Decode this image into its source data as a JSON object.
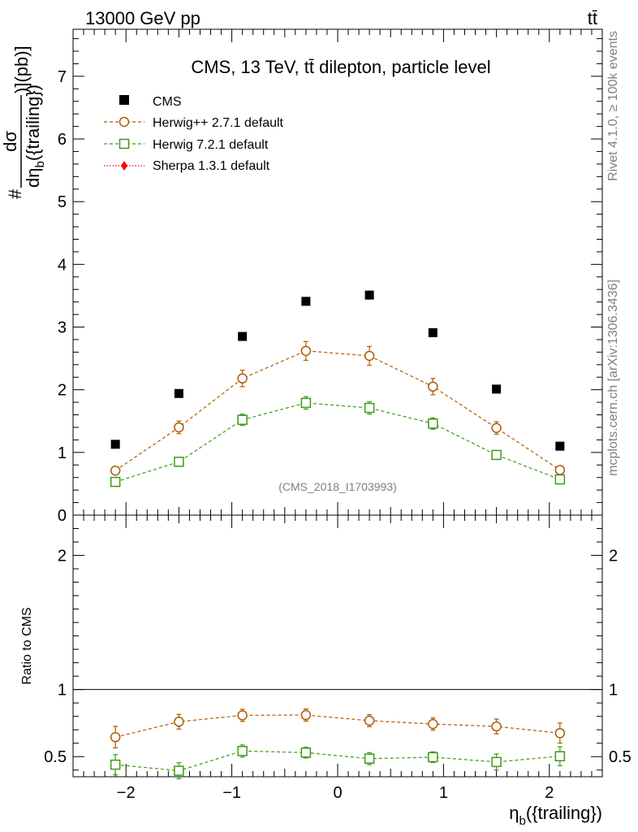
{
  "header": {
    "left": "13000 GeV pp",
    "right": "tt̄"
  },
  "side_labels": {
    "rivet": "Rivet 4.1.0, ≥ 100k events",
    "mcplots": "mcplots.cern.ch [arXiv:1306.3436]"
  },
  "chart_data": [
    {
      "type": "scatter",
      "panel": "main",
      "title": "CMS, 13 TeV, tt̄ dilepton, particle level",
      "watermark": "(CMS_2018_I1703993)",
      "ylabel": {
        "hash": "#",
        "frac_num": "dσ",
        "frac_den_pre": "dη",
        "frac_den_sub": "b",
        "frac_den_post": "({trailing})",
        "unit": ")](pb)]"
      },
      "xlim": [
        -2.5,
        2.5
      ],
      "ylim": [
        0,
        7.75
      ],
      "yticks": [
        0,
        1,
        2,
        3,
        4,
        5,
        6,
        7
      ],
      "x": [
        -2.1,
        -1.5,
        -0.9,
        -0.3,
        0.3,
        0.9,
        1.5,
        2.1
      ],
      "legend_position": "top-left",
      "series": [
        {
          "name": "CMS",
          "marker": "filled-square",
          "color": "#000000",
          "line": "none",
          "values": [
            1.13,
            1.94,
            2.85,
            3.41,
            3.51,
            2.91,
            2.01,
            1.1
          ]
        },
        {
          "name": "Herwig++ 2.7.1 default",
          "marker": "open-circle",
          "color": "#b05a00",
          "line": "dashed",
          "values": [
            0.71,
            1.4,
            2.18,
            2.62,
            2.54,
            2.05,
            1.39,
            0.72
          ],
          "errors": [
            0.05,
            0.1,
            0.13,
            0.15,
            0.15,
            0.13,
            0.1,
            0.05
          ]
        },
        {
          "name": "Herwig 7.2.1 default",
          "marker": "open-square",
          "color": "#3c9b13",
          "line": "dashed",
          "values": [
            0.53,
            0.85,
            1.52,
            1.79,
            1.71,
            1.46,
            0.96,
            0.57
          ],
          "errors": [
            0.04,
            0.06,
            0.09,
            0.1,
            0.1,
            0.09,
            0.07,
            0.04
          ]
        },
        {
          "name": "Sherpa 1.3.1 default",
          "marker": "filled-diamond",
          "color": "#ff0000",
          "line": "dotted",
          "values": []
        }
      ]
    },
    {
      "type": "scatter",
      "panel": "ratio",
      "ylabel": "Ratio to CMS",
      "xlabel_main": "η",
      "xlabel_sub": "b",
      "xlabel_post": "({trailing})",
      "xlim": [
        -2.5,
        2.5
      ],
      "ylim": [
        0.35,
        2.3
      ],
      "xticks": [
        -2,
        -1,
        0,
        1,
        2
      ],
      "xticklabels": [
        "−2",
        "−1",
        "0",
        "1",
        "2"
      ],
      "yticks": [
        0.5,
        1,
        2
      ],
      "yticklabels": [
        "0.5",
        "1",
        "2"
      ],
      "x": [
        -2.1,
        -1.5,
        -0.9,
        -0.3,
        0.3,
        0.9,
        1.5,
        2.1
      ],
      "series": [
        {
          "name": "Herwig++ 2.7.1 default",
          "color": "#b05a00",
          "values": [
            0.645,
            0.76,
            0.808,
            0.81,
            0.768,
            0.743,
            0.725,
            0.675
          ],
          "errors": [
            0.08,
            0.055,
            0.045,
            0.045,
            0.045,
            0.045,
            0.055,
            0.075
          ]
        },
        {
          "name": "Herwig 7.2.1 default",
          "color": "#3c9b13",
          "values": [
            0.44,
            0.395,
            0.542,
            0.53,
            0.485,
            0.496,
            0.46,
            0.503
          ],
          "errors": [
            0.075,
            0.06,
            0.045,
            0.04,
            0.045,
            0.04,
            0.06,
            0.07
          ]
        }
      ]
    }
  ]
}
